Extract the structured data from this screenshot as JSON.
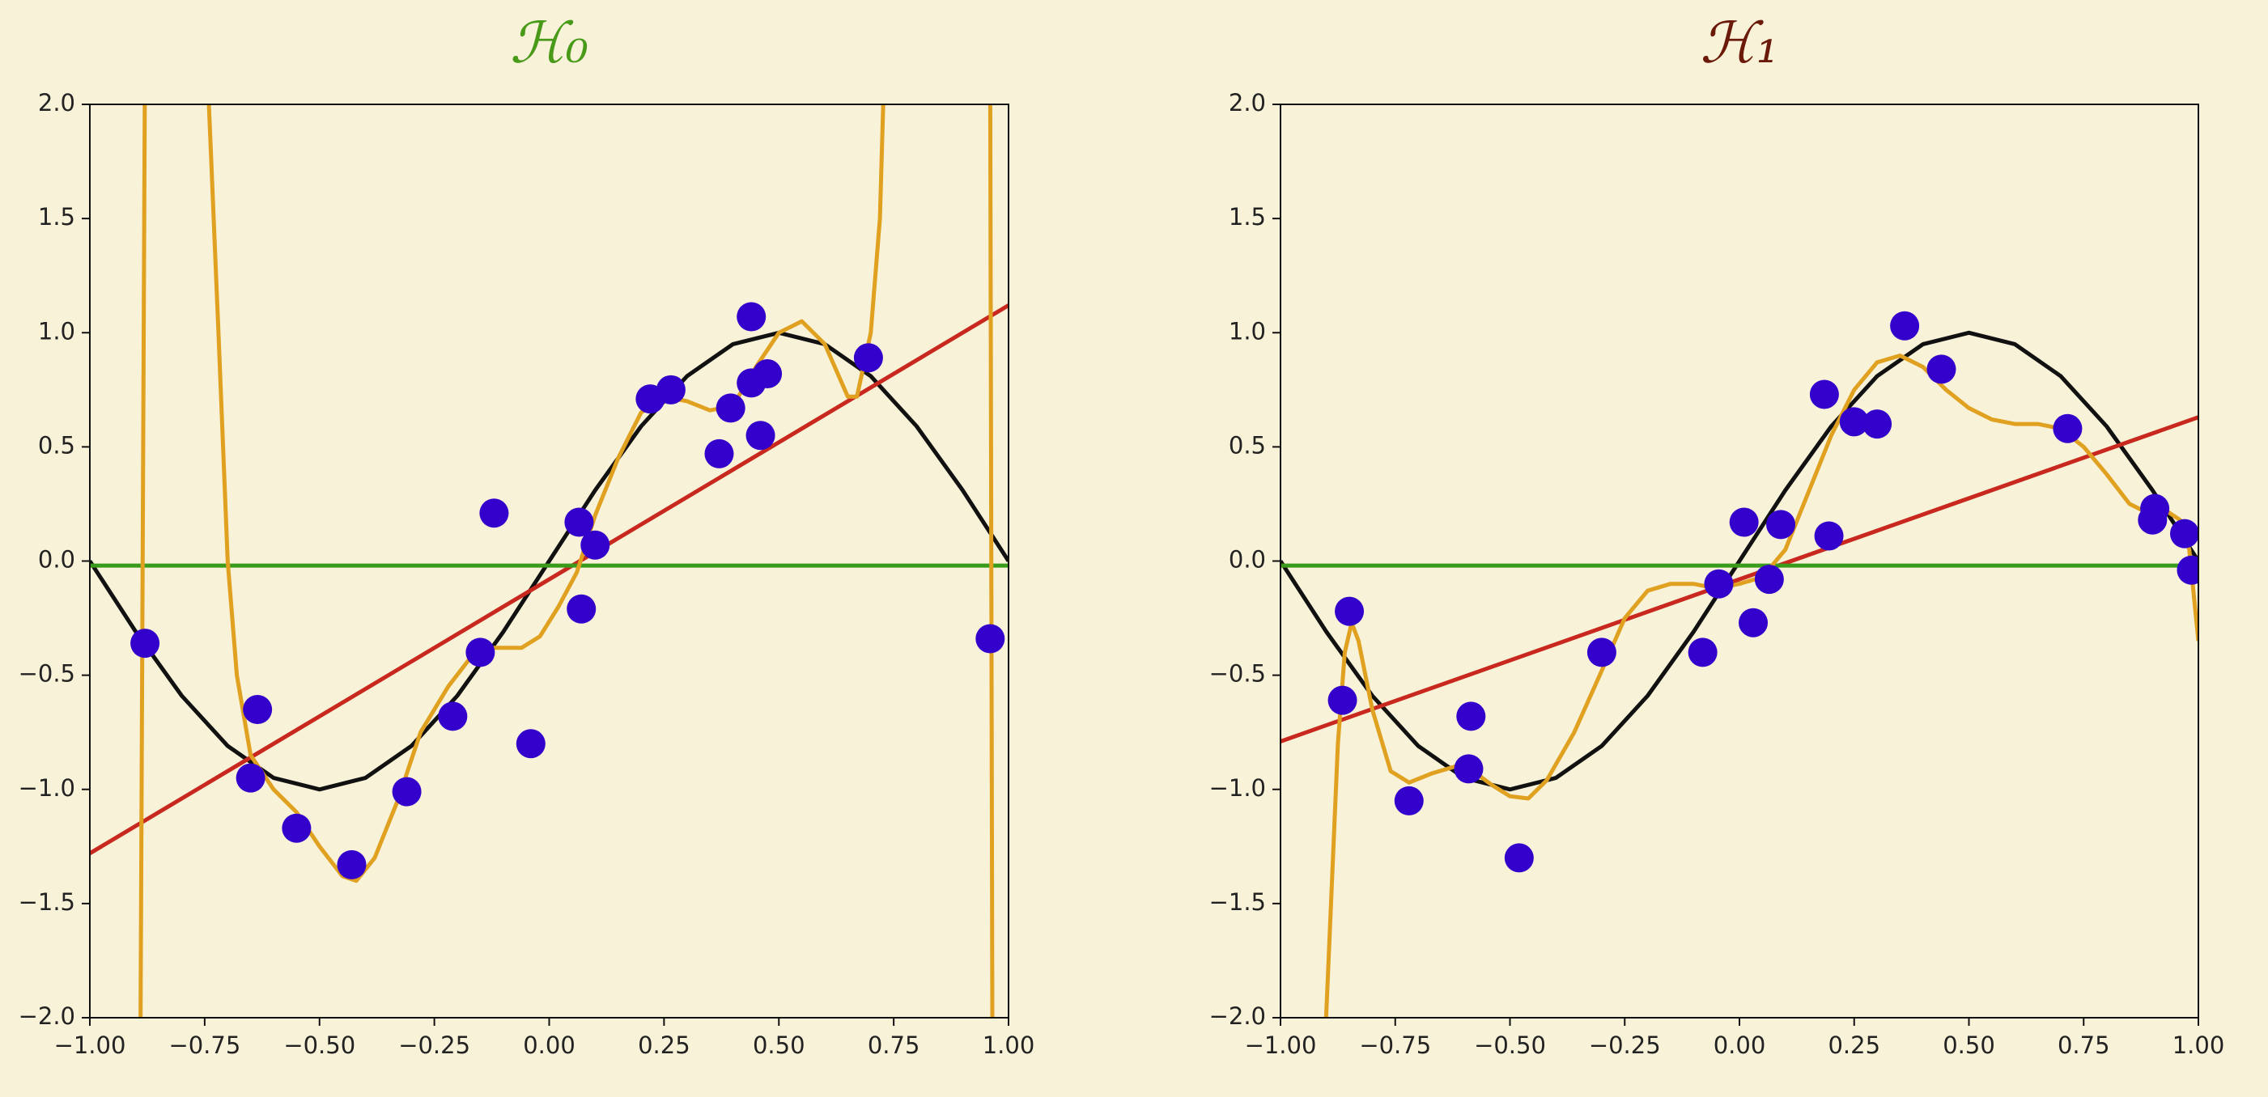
{
  "chart_data": [
    {
      "type": "scatter",
      "title": "ℋ₀",
      "title_color": "#4a9a1a",
      "xlim": [
        -1,
        1
      ],
      "ylim": [
        -2,
        2
      ],
      "xticks": [
        {
          "value": -1,
          "label": "−1.00"
        },
        {
          "value": -0.75,
          "label": "−0.75"
        },
        {
          "value": -0.5,
          "label": "−0.50"
        },
        {
          "value": -0.25,
          "label": "−0.25"
        },
        {
          "value": 0,
          "label": "0.00"
        },
        {
          "value": 0.25,
          "label": "0.25"
        },
        {
          "value": 0.5,
          "label": "0.50"
        },
        {
          "value": 0.75,
          "label": "0.75"
        },
        {
          "value": 1,
          "label": "1.00"
        }
      ],
      "yticks": [
        {
          "value": 2,
          "label": "2.0"
        },
        {
          "value": 1.5,
          "label": "1.5"
        },
        {
          "value": 1,
          "label": "1.0"
        },
        {
          "value": 0.5,
          "label": "0.5"
        },
        {
          "value": 0,
          "label": "0.0"
        },
        {
          "value": -0.5,
          "label": "−0.5"
        },
        {
          "value": -1,
          "label": "−1.0"
        },
        {
          "value": -1.5,
          "label": "−1.5"
        },
        {
          "value": -2,
          "label": "−2.0"
        }
      ],
      "series": [
        {
          "mode": "line",
          "color": "#111111",
          "x": [
            -1,
            -0.9,
            -0.8,
            -0.7,
            -0.6,
            -0.5,
            -0.4,
            -0.3,
            -0.2,
            -0.1,
            0,
            0.1,
            0.2,
            0.3,
            0.4,
            0.5,
            0.6,
            0.7,
            0.8,
            0.9,
            1
          ],
          "values": [
            0,
            -0.31,
            -0.59,
            -0.81,
            -0.95,
            -1,
            -0.95,
            -0.81,
            -0.59,
            -0.31,
            0,
            0.31,
            0.59,
            0.81,
            0.95,
            1,
            0.95,
            0.81,
            0.59,
            0.31,
            0
          ]
        },
        {
          "mode": "line",
          "color": "#c8281e",
          "x": [
            -1,
            1
          ],
          "values": [
            -1.28,
            1.12
          ]
        },
        {
          "mode": "line",
          "color": "#3a9a1a",
          "x": [
            -1,
            1
          ],
          "values": [
            -0.02,
            -0.02
          ]
        },
        {
          "mode": "line",
          "color": "#e0a020",
          "x": [
            -0.89,
            -0.88,
            -0.81,
            -0.745,
            -0.72,
            -0.7,
            -0.68,
            -0.65,
            -0.6,
            -0.55,
            -0.5,
            -0.45,
            -0.42,
            -0.38,
            -0.33,
            -0.28,
            -0.22,
            -0.17,
            -0.12,
            -0.06,
            -0.02,
            0.02,
            0.06,
            0.1,
            0.15,
            0.2,
            0.25,
            0.3,
            0.35,
            0.4,
            0.45,
            0.5,
            0.55,
            0.6,
            0.65,
            0.67,
            0.7,
            0.72,
            0.73,
            0.85,
            0.96,
            0.965
          ],
          "values": [
            -2.2,
            2.2,
            null,
            2.2,
            1.0,
            0.0,
            -0.5,
            -0.85,
            -1.0,
            -1.1,
            -1.25,
            -1.38,
            -1.4,
            -1.3,
            -1.05,
            -0.75,
            -0.55,
            -0.42,
            -0.38,
            -0.38,
            -0.33,
            -0.2,
            -0.05,
            0.2,
            0.45,
            0.65,
            0.72,
            0.7,
            0.66,
            0.68,
            0.85,
            1.0,
            1.05,
            0.95,
            0.72,
            0.72,
            1.0,
            1.5,
            2.2,
            null,
            2.2,
            -2.2
          ]
        },
        {
          "mode": "markers",
          "color": "#3300cc",
          "x": [
            -0.88,
            -0.635,
            -0.65,
            -0.55,
            -0.43,
            -0.31,
            -0.21,
            -0.15,
            -0.12,
            -0.04,
            0.065,
            0.07,
            0.1,
            0.22,
            0.265,
            0.37,
            0.395,
            0.44,
            0.44,
            0.475,
            0.46,
            0.695,
            0.96
          ],
          "values": [
            -0.36,
            -0.65,
            -0.95,
            -1.17,
            -1.33,
            -1.01,
            -0.68,
            -0.4,
            0.21,
            -0.8,
            0.17,
            -0.21,
            0.07,
            0.71,
            0.75,
            0.47,
            0.67,
            1.07,
            0.78,
            0.82,
            0.55,
            0.89,
            -0.34
          ]
        }
      ]
    },
    {
      "type": "scatter",
      "title": "ℋ₁",
      "title_color": "#6b1a0a",
      "xlim": [
        -1,
        1
      ],
      "ylim": [
        -2,
        2
      ],
      "xticks": [
        {
          "value": -1,
          "label": "−1.00"
        },
        {
          "value": -0.75,
          "label": "−0.75"
        },
        {
          "value": -0.5,
          "label": "−0.50"
        },
        {
          "value": -0.25,
          "label": "−0.25"
        },
        {
          "value": 0,
          "label": "0.00"
        },
        {
          "value": 0.25,
          "label": "0.25"
        },
        {
          "value": 0.5,
          "label": "0.50"
        },
        {
          "value": 0.75,
          "label": "0.75"
        },
        {
          "value": 1,
          "label": "1.00"
        }
      ],
      "yticks": [
        {
          "value": 2,
          "label": "2.0"
        },
        {
          "value": 1.5,
          "label": "1.5"
        },
        {
          "value": 1,
          "label": "1.0"
        },
        {
          "value": 0.5,
          "label": "0.5"
        },
        {
          "value": 0,
          "label": "0.0"
        },
        {
          "value": -0.5,
          "label": "−0.5"
        },
        {
          "value": -1,
          "label": "−1.0"
        },
        {
          "value": -1.5,
          "label": "−1.5"
        },
        {
          "value": -2,
          "label": "−2.0"
        }
      ],
      "series": [
        {
          "mode": "line",
          "color": "#111111",
          "x": [
            -1,
            -0.9,
            -0.8,
            -0.7,
            -0.6,
            -0.5,
            -0.4,
            -0.3,
            -0.2,
            -0.1,
            0,
            0.1,
            0.2,
            0.3,
            0.4,
            0.5,
            0.6,
            0.7,
            0.8,
            0.9,
            1
          ],
          "values": [
            0,
            -0.31,
            -0.59,
            -0.81,
            -0.95,
            -1,
            -0.95,
            -0.81,
            -0.59,
            -0.31,
            0,
            0.31,
            0.59,
            0.81,
            0.95,
            1,
            0.95,
            0.81,
            0.59,
            0.31,
            0
          ]
        },
        {
          "mode": "line",
          "color": "#c8281e",
          "x": [
            -1,
            1
          ],
          "values": [
            -0.79,
            0.63
          ]
        },
        {
          "mode": "line",
          "color": "#3a9a1a",
          "x": [
            -1,
            1
          ],
          "values": [
            -0.02,
            -0.02
          ]
        },
        {
          "mode": "line",
          "color": "#e0a020",
          "x": [
            -0.905,
            -0.89,
            -0.875,
            -0.86,
            -0.845,
            -0.83,
            -0.8,
            -0.76,
            -0.72,
            -0.67,
            -0.62,
            -0.58,
            -0.54,
            -0.5,
            -0.46,
            -0.42,
            -0.36,
            -0.3,
            -0.25,
            -0.2,
            -0.15,
            -0.1,
            -0.05,
            0,
            0.05,
            0.1,
            0.15,
            0.2,
            0.25,
            0.3,
            0.35,
            0.4,
            0.45,
            0.5,
            0.55,
            0.6,
            0.65,
            0.7,
            0.75,
            0.8,
            0.85,
            0.9,
            0.93,
            0.96,
            0.98,
            1.0
          ],
          "values": [
            -2.2,
            -1.5,
            -0.8,
            -0.4,
            -0.27,
            -0.35,
            -0.65,
            -0.92,
            -0.97,
            -0.93,
            -0.9,
            -0.92,
            -0.98,
            -1.03,
            -1.04,
            -0.96,
            -0.75,
            -0.48,
            -0.25,
            -0.13,
            -0.1,
            -0.1,
            -0.12,
            -0.1,
            -0.07,
            0.05,
            0.3,
            0.55,
            0.75,
            0.87,
            0.9,
            0.85,
            0.75,
            0.67,
            0.62,
            0.6,
            0.6,
            0.58,
            0.5,
            0.38,
            0.25,
            0.2,
            0.22,
            0.18,
            0.05,
            -0.35
          ]
        },
        {
          "mode": "markers",
          "color": "#3300cc",
          "x": [
            -0.865,
            -0.85,
            -0.72,
            -0.585,
            -0.59,
            -0.48,
            -0.3,
            -0.08,
            -0.045,
            0.01,
            0.03,
            0.065,
            0.09,
            0.185,
            0.195,
            0.25,
            0.3,
            0.36,
            0.44,
            0.715,
            0.905,
            0.9,
            0.97,
            0.985
          ],
          "values": [
            -0.61,
            -0.22,
            -1.05,
            -0.68,
            -0.91,
            -1.3,
            -0.4,
            -0.4,
            -0.1,
            0.17,
            -0.27,
            -0.08,
            0.16,
            0.73,
            0.11,
            0.61,
            0.6,
            1.03,
            0.84,
            0.58,
            0.23,
            0.18,
            0.12,
            -0.04
          ]
        }
      ]
    }
  ]
}
